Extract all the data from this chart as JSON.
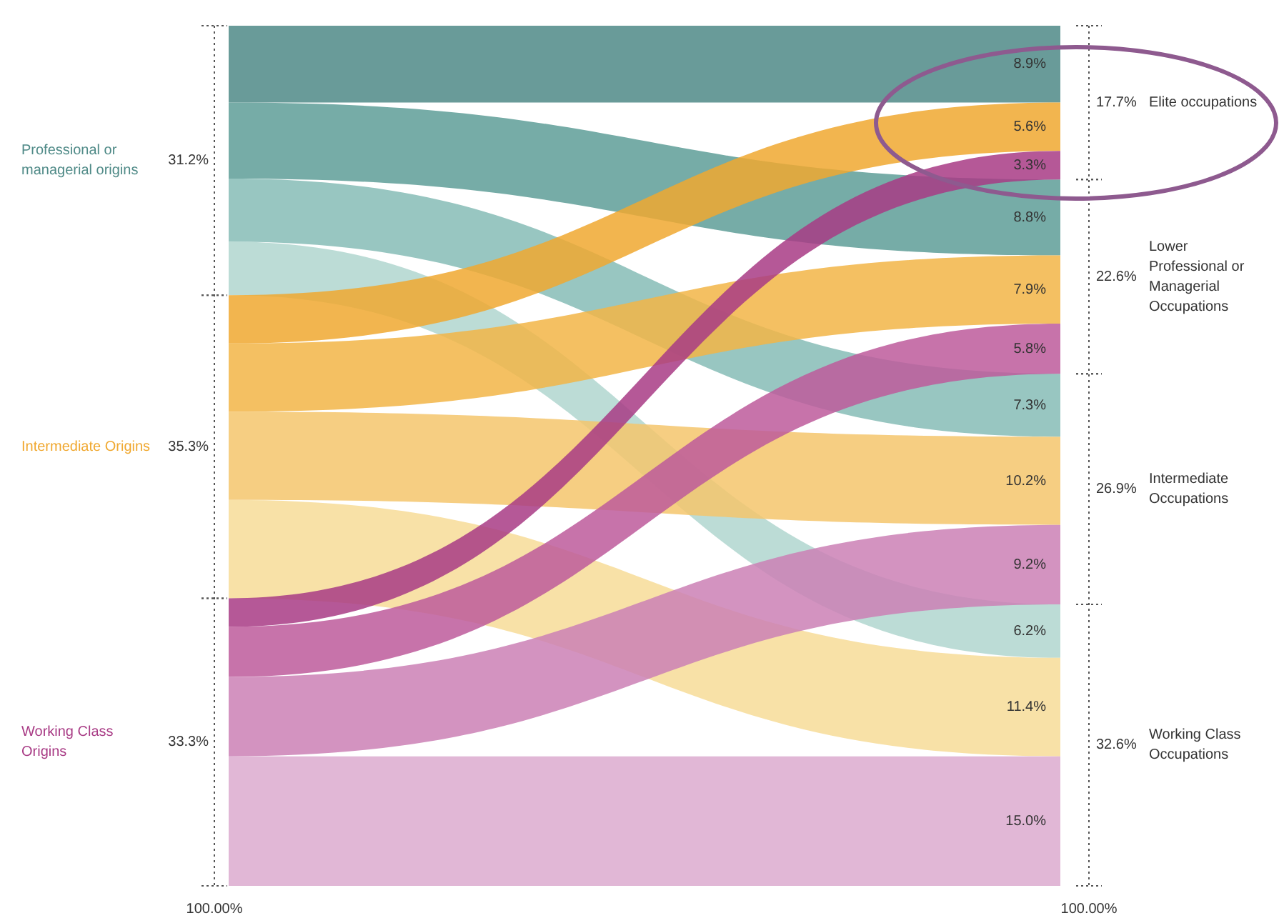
{
  "chart_data": {
    "type": "other",
    "categories": [
      "Elite occupations",
      "Lower Professional or Managerial Occupations",
      "Intermediate Occupations",
      "Working Class Occupations"
    ],
    "series": [
      {
        "name": "Professional or managerial origins",
        "colors": [
          "#4f8a87",
          "#5e9d98",
          "#86bcb6",
          "#b0d6cf"
        ],
        "values": [
          8.9,
          8.8,
          7.3,
          6.2
        ],
        "value_labels": [
          "8.9%",
          "8.8%",
          "7.3%",
          "6.2%"
        ]
      },
      {
        "name": "Intermediate Origins",
        "colors": [
          "#f0a830",
          "#f2b547",
          "#f4c66c",
          "#f7dc98"
        ],
        "values": [
          5.6,
          7.9,
          10.2,
          11.4
        ],
        "value_labels": [
          "5.6%",
          "7.9%",
          "10.2%",
          "11.4%"
        ]
      },
      {
        "name": "Working Class Origins",
        "colors": [
          "#a83b85",
          "#bd5a9b",
          "#cb80b5",
          "#dcaacf"
        ],
        "values": [
          3.3,
          5.8,
          9.2,
          15.0
        ],
        "value_labels": [
          "3.3%",
          "5.8%",
          "9.2%",
          "15.0%"
        ]
      }
    ],
    "totals": [
      "17.7%",
      "22.6%",
      "26.9%",
      "32.6%"
    ],
    "annotations": [
      "31.2%",
      "35.3%",
      "33.3%",
      "100.00%",
      "100.00%"
    ]
  }
}
